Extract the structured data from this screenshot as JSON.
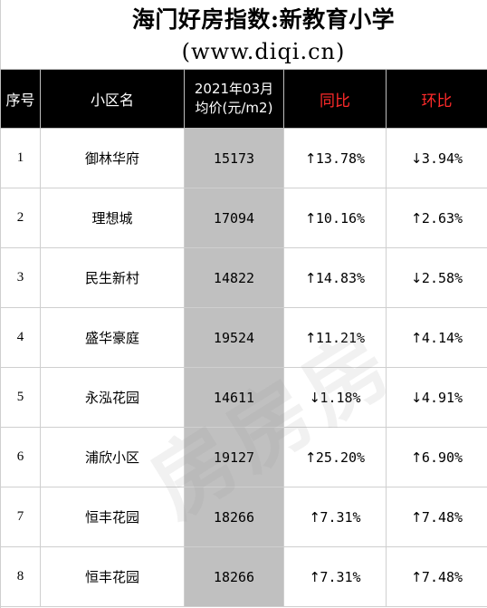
{
  "title": {
    "line1": "海门好房指数:新教育小学",
    "line2": "(www.diqi.cn)"
  },
  "header": {
    "index": "序号",
    "name": "小区名",
    "price_line1": "2021年03月",
    "price_line2": "均价(元/m2)",
    "yoy": "同比",
    "mom": "环比"
  },
  "rows": [
    {
      "index": "1",
      "name": "御林华府",
      "price": "15173",
      "yoy_dir": "up",
      "yoy": "13.78%",
      "mom_dir": "down",
      "mom": "3.94%"
    },
    {
      "index": "2",
      "name": "理想城",
      "price": "17094",
      "yoy_dir": "up",
      "yoy": "10.16%",
      "mom_dir": "up",
      "mom": "2.63%"
    },
    {
      "index": "3",
      "name": "民生新村",
      "price": "14822",
      "yoy_dir": "up",
      "yoy": "14.83%",
      "mom_dir": "down",
      "mom": "2.58%"
    },
    {
      "index": "4",
      "name": "盛华豪庭",
      "price": "19524",
      "yoy_dir": "up",
      "yoy": "11.21%",
      "mom_dir": "up",
      "mom": "4.14%"
    },
    {
      "index": "5",
      "name": "永泓花园",
      "price": "14611",
      "yoy_dir": "down",
      "yoy": "1.18%",
      "mom_dir": "down",
      "mom": "4.91%"
    },
    {
      "index": "6",
      "name": "浦欣小区",
      "price": "19127",
      "yoy_dir": "up",
      "yoy": "25.20%",
      "mom_dir": "up",
      "mom": "6.90%"
    },
    {
      "index": "7",
      "name": "恒丰花园",
      "price": "18266",
      "yoy_dir": "up",
      "yoy": "7.31%",
      "mom_dir": "up",
      "mom": "7.48%"
    },
    {
      "index": "8",
      "name": "恒丰花园",
      "price": "18266",
      "yoy_dir": "up",
      "yoy": "7.31%",
      "mom_dir": "up",
      "mom": "7.48%"
    }
  ],
  "colors": {
    "up": "#e00000",
    "down": "#1a1ad0",
    "header_bg": "#000000",
    "header_red": "#ff2a2a",
    "price_bg": "#c0c0c0"
  },
  "icons": {
    "up": "arrow-up-icon",
    "down": "arrow-down-icon"
  },
  "watermark": "房房房"
}
